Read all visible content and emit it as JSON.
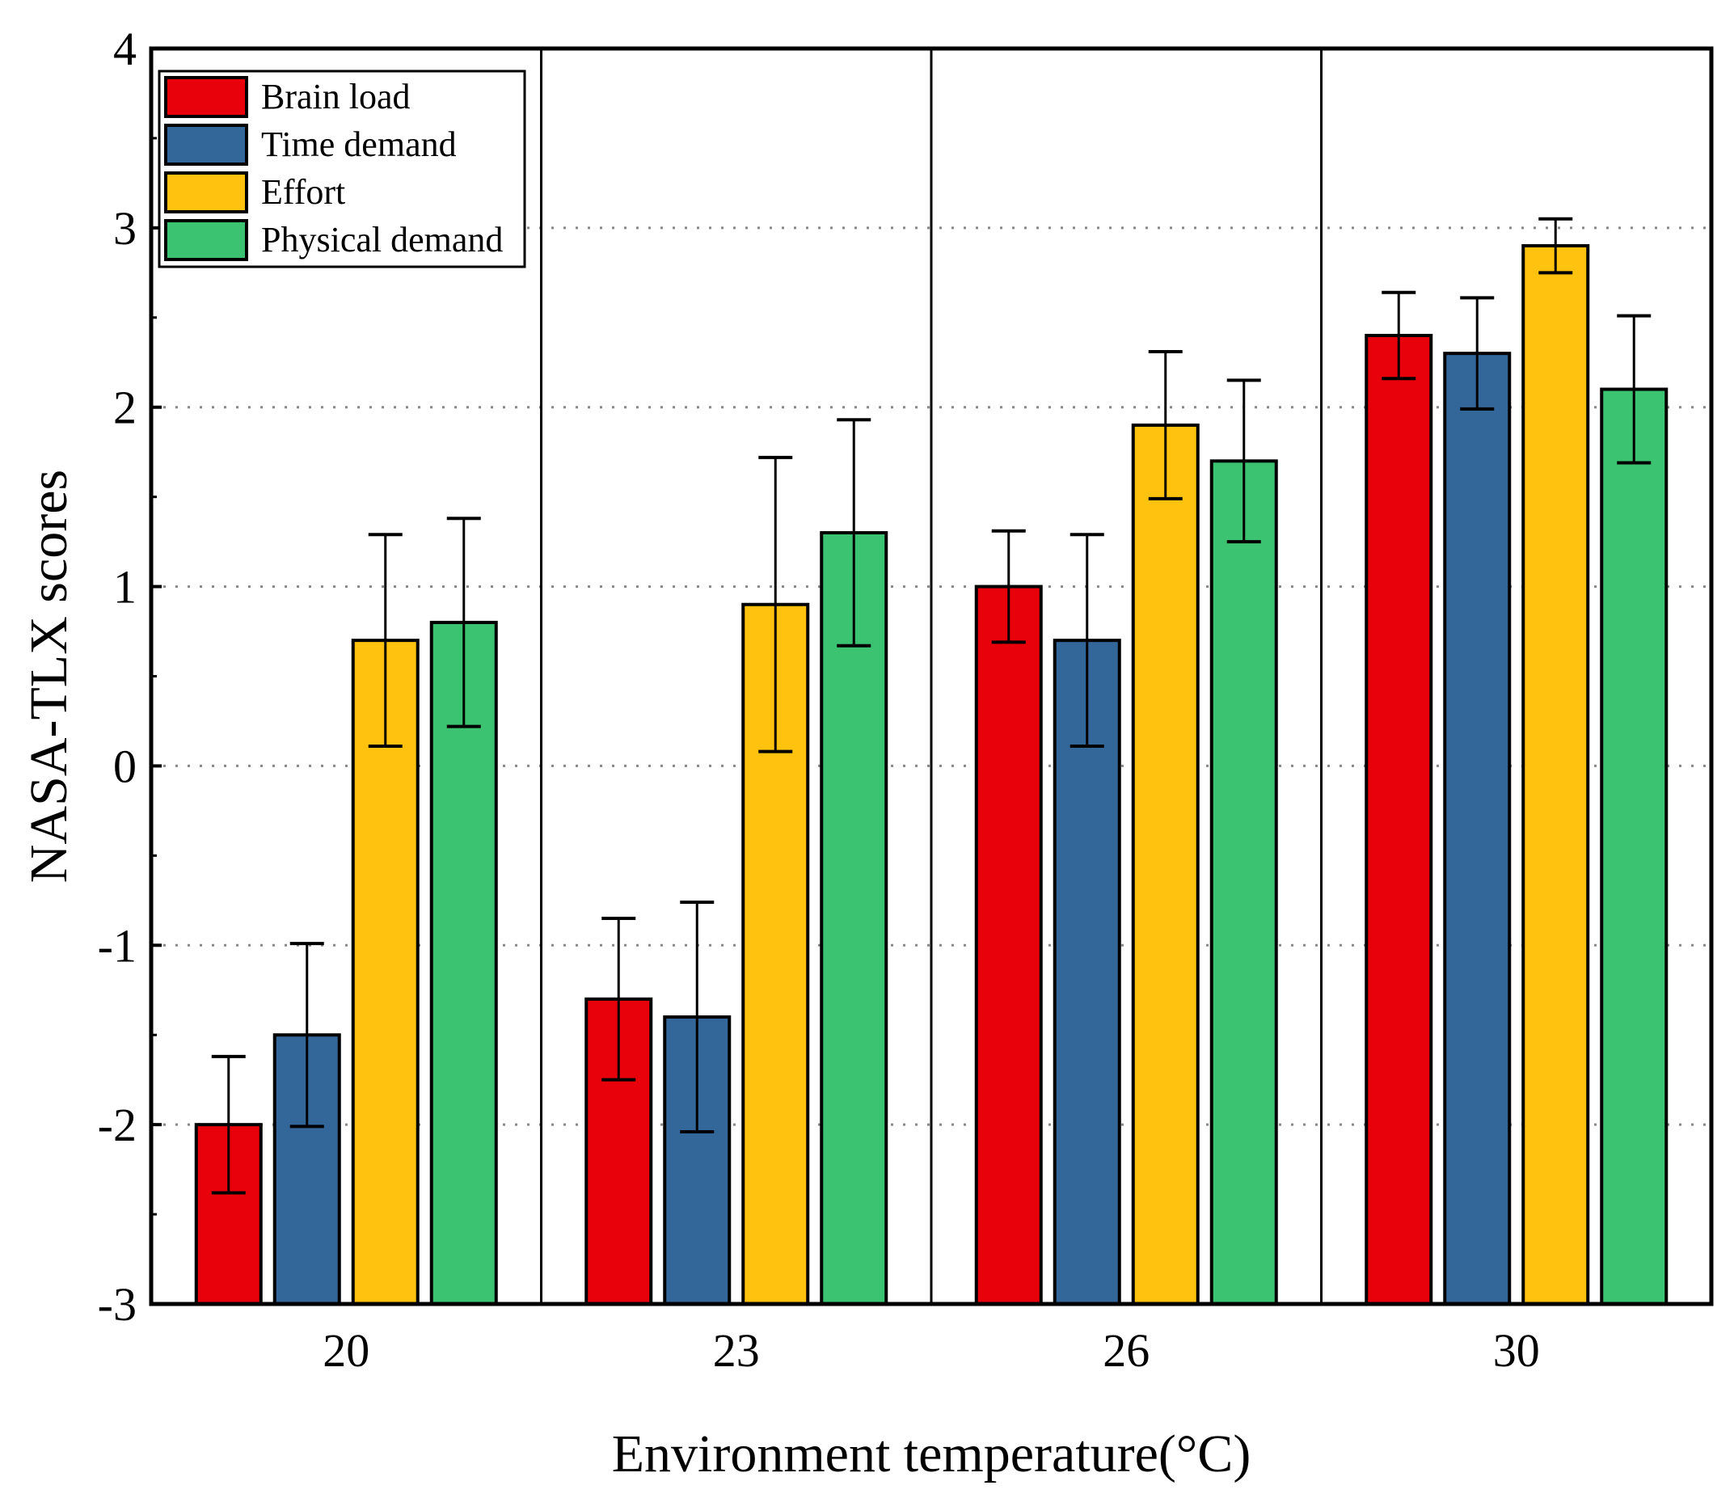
{
  "chart_data": {
    "type": "bar",
    "xlabel": "Environment temperature(°C)",
    "ylabel": "NASA-TLX scores",
    "ylim": [
      -3,
      4
    ],
    "yticks": [
      -3,
      -2,
      -1,
      0,
      1,
      2,
      3,
      4
    ],
    "grid": "horizontal dotted",
    "legend_position": "top-left",
    "categories": [
      "20",
      "23",
      "26",
      "30"
    ],
    "series": [
      {
        "name": "Brain load",
        "color": "#e8000b",
        "values": [
          -2.0,
          -1.3,
          1.0,
          2.4
        ],
        "errors": [
          0.38,
          0.45,
          0.31,
          0.24
        ]
      },
      {
        "name": "Time demand",
        "color": "#336699",
        "values": [
          -1.5,
          -1.4,
          0.7,
          2.3
        ],
        "errors": [
          0.51,
          0.64,
          0.59,
          0.31
        ]
      },
      {
        "name": "Effort",
        "color": "#ffc20e",
        "values": [
          0.7,
          0.9,
          1.9,
          2.9
        ],
        "errors": [
          0.59,
          0.82,
          0.41,
          0.15
        ]
      },
      {
        "name": "Physical demand",
        "color": "#3cc371",
        "values": [
          0.8,
          1.3,
          1.7,
          2.1
        ],
        "errors": [
          0.58,
          0.63,
          0.45,
          0.41
        ]
      }
    ]
  }
}
